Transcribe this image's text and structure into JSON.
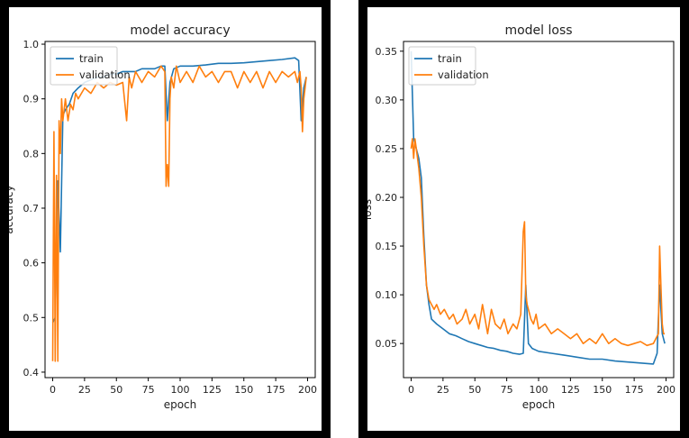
{
  "colors": {
    "train": "#1f77b4",
    "validation": "#ff7f0e",
    "frame": "#000000"
  },
  "chart_data": [
    {
      "type": "line",
      "title": "model accuracy",
      "xlabel": "epoch",
      "ylabel": "accuracy",
      "xlim": [
        -6,
        206
      ],
      "ylim": [
        0.39,
        1.005
      ],
      "x_ticks": [
        0,
        25,
        50,
        75,
        100,
        125,
        150,
        175,
        200
      ],
      "y_ticks": [
        0.4,
        0.5,
        0.6,
        0.7,
        0.8,
        0.9,
        1.0
      ],
      "y_tick_labels": [
        "0.4",
        "0.5",
        "0.6",
        "0.7",
        "0.8",
        "0.9",
        "1.0"
      ],
      "legend": [
        "train",
        "validation"
      ],
      "legend_position": "top-left",
      "grid": false,
      "series": [
        {
          "name": "train",
          "x": [
            0,
            2,
            4,
            6,
            8,
            10,
            13,
            16,
            20,
            25,
            30,
            35,
            40,
            45,
            50,
            55,
            60,
            65,
            70,
            75,
            80,
            85,
            88,
            90,
            92,
            95,
            100,
            110,
            120,
            130,
            140,
            150,
            160,
            170,
            180,
            190,
            193,
            195,
            197,
            199
          ],
          "values": [
            0.49,
            0.5,
            0.75,
            0.62,
            0.87,
            0.88,
            0.89,
            0.91,
            0.92,
            0.93,
            0.935,
            0.94,
            0.94,
            0.945,
            0.945,
            0.95,
            0.95,
            0.95,
            0.955,
            0.955,
            0.955,
            0.96,
            0.96,
            0.86,
            0.93,
            0.955,
            0.96,
            0.96,
            0.962,
            0.965,
            0.965,
            0.966,
            0.968,
            0.97,
            0.972,
            0.975,
            0.97,
            0.86,
            0.92,
            0.94
          ]
        },
        {
          "name": "validation",
          "x": [
            0,
            1,
            2,
            3,
            4,
            5,
            6,
            7,
            8,
            10,
            12,
            14,
            16,
            18,
            20,
            25,
            30,
            35,
            40,
            45,
            50,
            55,
            58,
            60,
            62,
            65,
            70,
            75,
            80,
            85,
            88,
            89,
            90,
            91,
            92,
            93,
            95,
            97,
            100,
            105,
            110,
            115,
            120,
            125,
            130,
            135,
            140,
            145,
            150,
            155,
            160,
            165,
            170,
            175,
            180,
            185,
            190,
            192,
            194,
            195,
            196,
            197,
            198,
            199
          ],
          "values": [
            0.42,
            0.84,
            0.42,
            0.76,
            0.42,
            0.86,
            0.8,
            0.9,
            0.86,
            0.9,
            0.86,
            0.89,
            0.88,
            0.91,
            0.9,
            0.92,
            0.91,
            0.93,
            0.92,
            0.93,
            0.925,
            0.93,
            0.86,
            0.94,
            0.92,
            0.95,
            0.93,
            0.95,
            0.94,
            0.96,
            0.95,
            0.74,
            0.78,
            0.74,
            0.9,
            0.94,
            0.92,
            0.96,
            0.93,
            0.95,
            0.93,
            0.96,
            0.94,
            0.95,
            0.93,
            0.95,
            0.95,
            0.92,
            0.95,
            0.93,
            0.95,
            0.92,
            0.95,
            0.93,
            0.95,
            0.94,
            0.95,
            0.93,
            0.95,
            0.92,
            0.84,
            0.9,
            0.92,
            0.94
          ]
        }
      ]
    },
    {
      "type": "line",
      "title": "model loss",
      "xlabel": "epoch",
      "ylabel": "loss",
      "xlim": [
        -6,
        206
      ],
      "ylim": [
        0.015,
        0.36
      ],
      "x_ticks": [
        0,
        25,
        50,
        75,
        100,
        125,
        150,
        175,
        200
      ],
      "y_ticks": [
        0.05,
        0.1,
        0.15,
        0.2,
        0.25,
        0.3,
        0.35
      ],
      "y_tick_labels": [
        "0.05",
        "0.10",
        "0.15",
        "0.20",
        "0.25",
        "0.30",
        "0.35"
      ],
      "legend": [
        "train",
        "validation"
      ],
      "legend_position": "top-left",
      "grid": false,
      "series": [
        {
          "name": "train",
          "x": [
            0,
            2,
            4,
            6,
            8,
            10,
            12,
            14,
            16,
            20,
            25,
            30,
            35,
            40,
            45,
            50,
            55,
            60,
            65,
            70,
            75,
            80,
            85,
            88,
            90,
            92,
            95,
            100,
            110,
            120,
            130,
            140,
            150,
            160,
            170,
            180,
            190,
            193,
            195,
            197,
            199
          ],
          "values": [
            0.35,
            0.26,
            0.25,
            0.24,
            0.22,
            0.16,
            0.11,
            0.09,
            0.075,
            0.07,
            0.065,
            0.06,
            0.058,
            0.055,
            0.052,
            0.05,
            0.048,
            0.046,
            0.045,
            0.043,
            0.042,
            0.04,
            0.039,
            0.04,
            0.11,
            0.05,
            0.045,
            0.042,
            0.04,
            0.038,
            0.036,
            0.034,
            0.034,
            0.032,
            0.031,
            0.03,
            0.029,
            0.04,
            0.11,
            0.06,
            0.05
          ]
        },
        {
          "name": "validation",
          "x": [
            0,
            1,
            2,
            3,
            4,
            5,
            6,
            8,
            10,
            12,
            14,
            16,
            18,
            20,
            23,
            26,
            30,
            33,
            36,
            40,
            43,
            46,
            50,
            53,
            56,
            58,
            60,
            63,
            66,
            70,
            73,
            76,
            80,
            83,
            86,
            88,
            89,
            90,
            91,
            92,
            94,
            96,
            98,
            100,
            105,
            110,
            115,
            120,
            125,
            130,
            135,
            140,
            145,
            150,
            155,
            160,
            165,
            170,
            175,
            180,
            185,
            190,
            192,
            194,
            195,
            196,
            197,
            198,
            199
          ],
          "values": [
            0.25,
            0.26,
            0.24,
            0.26,
            0.25,
            0.24,
            0.23,
            0.2,
            0.15,
            0.11,
            0.095,
            0.09,
            0.085,
            0.09,
            0.08,
            0.085,
            0.075,
            0.08,
            0.07,
            0.075,
            0.085,
            0.07,
            0.08,
            0.065,
            0.09,
            0.075,
            0.06,
            0.085,
            0.07,
            0.065,
            0.075,
            0.06,
            0.07,
            0.065,
            0.08,
            0.165,
            0.175,
            0.1,
            0.09,
            0.085,
            0.075,
            0.07,
            0.08,
            0.065,
            0.07,
            0.06,
            0.065,
            0.06,
            0.055,
            0.06,
            0.05,
            0.055,
            0.05,
            0.06,
            0.05,
            0.055,
            0.05,
            0.048,
            0.05,
            0.052,
            0.048,
            0.05,
            0.055,
            0.06,
            0.15,
            0.11,
            0.07,
            0.06,
            0.06
          ]
        }
      ]
    }
  ]
}
